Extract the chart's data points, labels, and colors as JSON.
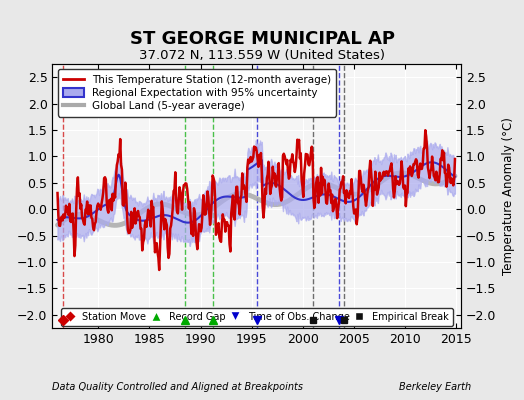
{
  "title": "ST GEORGE MUNICIPAL AP",
  "subtitle": "37.072 N, 113.559 W (United States)",
  "ylabel": "Temperature Anomaly (°C)",
  "xlabel_left": "Data Quality Controlled and Aligned at Breakpoints",
  "xlabel_right": "Berkeley Earth",
  "year_start": 1975.5,
  "year_end": 2015.5,
  "ylim": [
    -2.25,
    2.75
  ],
  "yticks": [
    -2,
    -1.5,
    -1,
    -0.5,
    0,
    0.5,
    1,
    1.5,
    2,
    2.5
  ],
  "xticks": [
    1980,
    1985,
    1990,
    1995,
    2000,
    2005,
    2010,
    2015
  ],
  "background_color": "#e8e8e8",
  "plot_bg_color": "#f5f5f5",
  "grid_color": "#ffffff",
  "station_color": "#cc0000",
  "regional_color": "#3333cc",
  "regional_fill_color": "#aaaaee",
  "global_color": "#aaaaaa",
  "legend_items": [
    "This Temperature Station (12-month average)",
    "Regional Expectation with 95% uncertainty",
    "Global Land (5-year average)"
  ],
  "markers": {
    "station_move": {
      "x": 1976.5,
      "color": "#cc0000",
      "marker": "D"
    },
    "record_gaps": [
      {
        "x": 1988.5
      },
      {
        "x": 1991.2
      }
    ],
    "time_obs_change": [
      {
        "x": 1995.5
      },
      {
        "x": 2003.5
      }
    ],
    "empirical_breaks": [
      {
        "x": 2001.5
      },
      {
        "x": 2004.5
      }
    ]
  }
}
